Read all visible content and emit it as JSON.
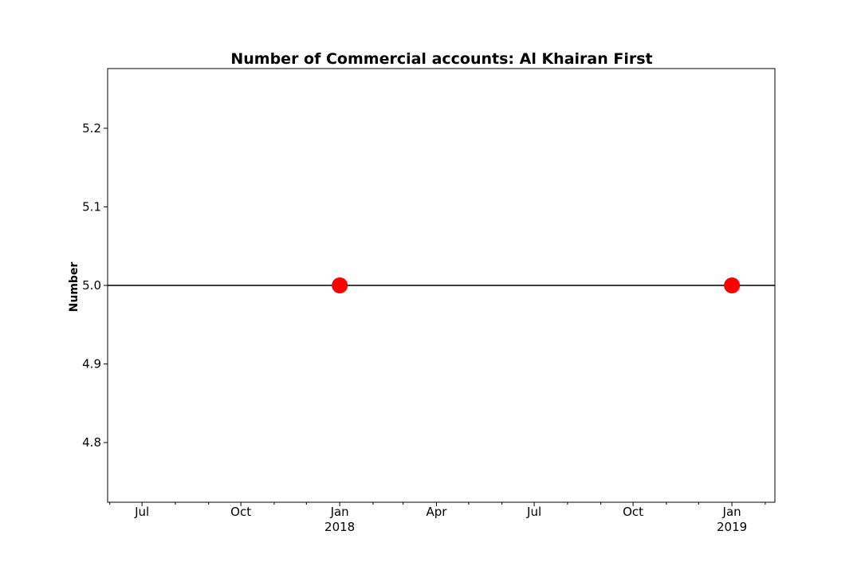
{
  "chart_data": {
    "type": "line",
    "title": "Number of Commercial accounts: Al Khairan First",
    "xlabel": "",
    "ylabel": "Number",
    "x_major_ticks": [
      {
        "date": "2017-07-01",
        "label": "Jul",
        "year": ""
      },
      {
        "date": "2017-10-01",
        "label": "Oct",
        "year": ""
      },
      {
        "date": "2018-01-01",
        "label": "Jan",
        "year": "2018"
      },
      {
        "date": "2018-04-01",
        "label": "Apr",
        "year": ""
      },
      {
        "date": "2018-07-01",
        "label": "Jul",
        "year": ""
      },
      {
        "date": "2018-10-01",
        "label": "Oct",
        "year": ""
      },
      {
        "date": "2019-01-01",
        "label": "Jan",
        "year": "2019"
      }
    ],
    "x_minor_ticks": [
      "2017-06-01",
      "2017-08-01",
      "2017-09-01",
      "2017-11-01",
      "2017-12-01",
      "2018-02-01",
      "2018-03-01",
      "2018-05-01",
      "2018-06-01",
      "2018-08-01",
      "2018-09-01",
      "2018-11-01",
      "2018-12-01",
      "2019-02-01"
    ],
    "xlim": [
      "2017-05-30",
      "2019-02-10"
    ],
    "y_ticks": [
      4.8,
      4.9,
      5.0,
      5.1,
      5.2
    ],
    "ylim": [
      4.724,
      5.276
    ],
    "grid": false,
    "series": [
      {
        "color": "#ff0000",
        "marker": "circle",
        "points": [
          {
            "x": "2018-01-01",
            "y": 5.0
          },
          {
            "x": "2019-01-01",
            "y": 5.0
          }
        ]
      }
    ],
    "reference_line": {
      "y": 5.0,
      "color": "#000000"
    }
  }
}
